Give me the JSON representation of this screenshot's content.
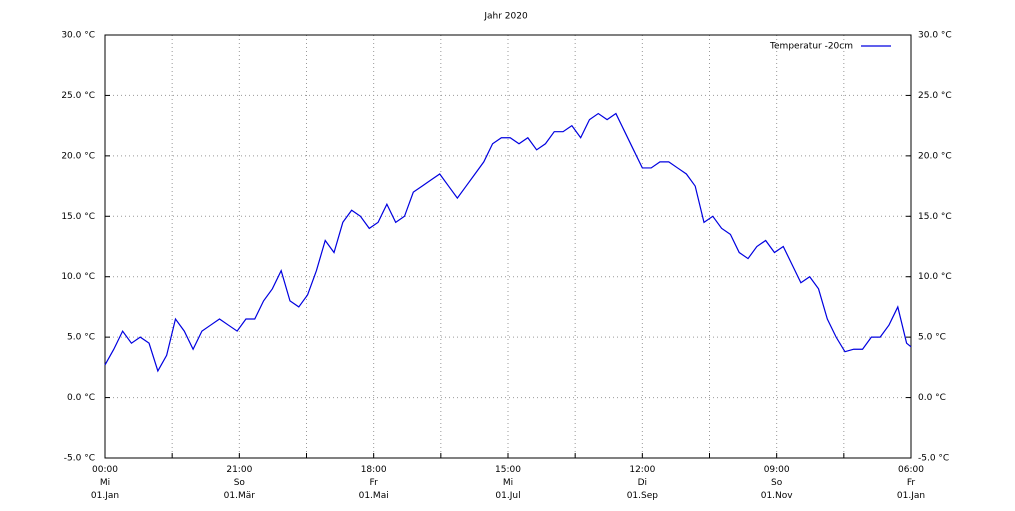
{
  "chart_data": {
    "type": "line",
    "title": "Jahr 2020",
    "x": [
      0,
      4,
      8,
      12,
      16,
      20,
      24,
      28,
      32,
      36,
      40,
      44,
      48,
      52,
      56,
      60,
      64,
      68,
      72,
      76,
      80,
      84,
      88,
      92,
      96,
      100,
      104,
      108,
      112,
      116,
      120,
      124,
      128,
      132,
      136,
      140,
      144,
      148,
      152,
      156,
      160,
      164,
      168,
      172,
      176,
      180,
      184,
      188,
      192,
      196,
      200,
      204,
      208,
      212,
      216,
      220,
      224,
      228,
      232,
      236,
      240,
      244,
      248,
      252,
      256,
      260,
      264,
      268,
      272,
      276,
      280,
      284,
      288,
      292,
      296,
      300,
      304,
      308,
      312,
      316,
      320,
      324,
      328,
      332,
      336,
      340,
      344,
      348,
      352,
      356,
      360,
      364,
      366
    ],
    "series": [
      {
        "name": "Temperatur -20cm",
        "color": "#0000e0",
        "values": [
          2.7,
          4.0,
          5.5,
          4.5,
          5.0,
          4.5,
          2.2,
          3.5,
          6.5,
          5.5,
          4.0,
          5.5,
          6.0,
          6.5,
          6.0,
          5.5,
          6.5,
          6.5,
          8.0,
          9.0,
          10.5,
          8.0,
          7.5,
          8.5,
          10.5,
          13.0,
          12.0,
          14.5,
          15.5,
          15.0,
          14.0,
          14.5,
          16.0,
          14.5,
          15.0,
          17.0,
          17.5,
          18.0,
          18.5,
          17.5,
          16.5,
          17.5,
          18.5,
          19.5,
          21.0,
          21.5,
          21.5,
          21.0,
          21.5,
          20.5,
          21.0,
          22.0,
          22.0,
          22.5,
          21.5,
          23.0,
          23.5,
          23.0,
          23.5,
          22.0,
          20.5,
          19.0,
          19.0,
          19.5,
          19.5,
          19.0,
          18.5,
          17.5,
          14.5,
          15.0,
          14.0,
          13.5,
          12.0,
          11.5,
          12.5,
          13.0,
          12.0,
          12.5,
          11.0,
          9.5,
          10.0,
          9.0,
          6.5,
          5.0,
          3.8,
          4.0,
          4.0,
          5.0,
          5.0,
          6.0,
          7.5,
          4.5,
          4.2
        ]
      }
    ],
    "xlim": [
      0,
      366
    ],
    "xticks": [
      {
        "value": 0,
        "label": "00:00\nMi\n01.Jan"
      },
      {
        "value": 61,
        "label": "21:00\nSo\n01.Mär"
      },
      {
        "value": 122,
        "label": "18:00\nFr\n01.Mai"
      },
      {
        "value": 183,
        "label": "15:00\nMi\n01.Jul"
      },
      {
        "value": 244,
        "label": "12:00\nDi\n01.Sep"
      },
      {
        "value": 305,
        "label": "09:00\nSo\n01.Nov"
      },
      {
        "value": 366,
        "label": "06:00\nFr\n01.Jan"
      }
    ],
    "xgrid_minor": [
      30.5,
      91.5,
      152.5,
      213.5,
      274.5,
      335.5
    ],
    "ylim": [
      -5,
      30
    ],
    "yticks": [
      {
        "value": -5,
        "label": "-5.0 °C"
      },
      {
        "value": 0,
        "label": "0.0 °C"
      },
      {
        "value": 5,
        "label": "5.0 °C"
      },
      {
        "value": 10,
        "label": "10.0 °C"
      },
      {
        "value": 15,
        "label": "15.0 °C"
      },
      {
        "value": 20,
        "label": "20.0 °C"
      },
      {
        "value": 25,
        "label": "25.0 °C"
      },
      {
        "value": 30,
        "label": "30.0 °C"
      }
    ],
    "grid": true,
    "legend": "top-right"
  }
}
